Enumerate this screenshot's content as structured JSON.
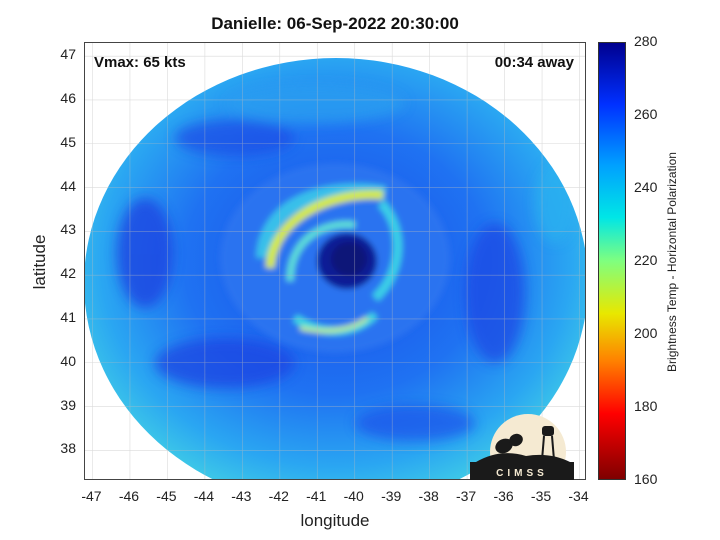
{
  "title": "Danielle: 06-Sep-2022 20:30:00",
  "annotations": {
    "vmax": "Vmax: 65 kts",
    "time_away": "00:34 away"
  },
  "axes": {
    "xlabel": "longitude",
    "ylabel": "latitude",
    "x_ticks": [
      "-47",
      "-46",
      "-45",
      "-44",
      "-43",
      "-42",
      "-41",
      "-40",
      "-39",
      "-38",
      "-37",
      "-36",
      "-35",
      "-34"
    ],
    "y_ticks": [
      "47",
      "46",
      "45",
      "44",
      "43",
      "42",
      "41",
      "40",
      "39",
      "38"
    ],
    "xlim": [
      -47.2,
      -33.8
    ],
    "ylim": [
      37.3,
      47.3
    ],
    "grid": true
  },
  "colorbar": {
    "label": "Brightness Temp - Horizontal Polarization",
    "ticks": [
      "280",
      "260",
      "240",
      "220",
      "200",
      "180",
      "160"
    ],
    "range": [
      160,
      280
    ],
    "colormap": "jet"
  },
  "storm": {
    "center_lon": -40.6,
    "center_lat": 42.3,
    "eye_temp": 270,
    "rainband_temp": 215
  },
  "logo": {
    "text": "CIMSS"
  },
  "colors": {
    "background": "#ffffff",
    "swath_base": "#1c6ef0",
    "eye": "#0a1a8a",
    "rainband": "#cbe83a"
  }
}
